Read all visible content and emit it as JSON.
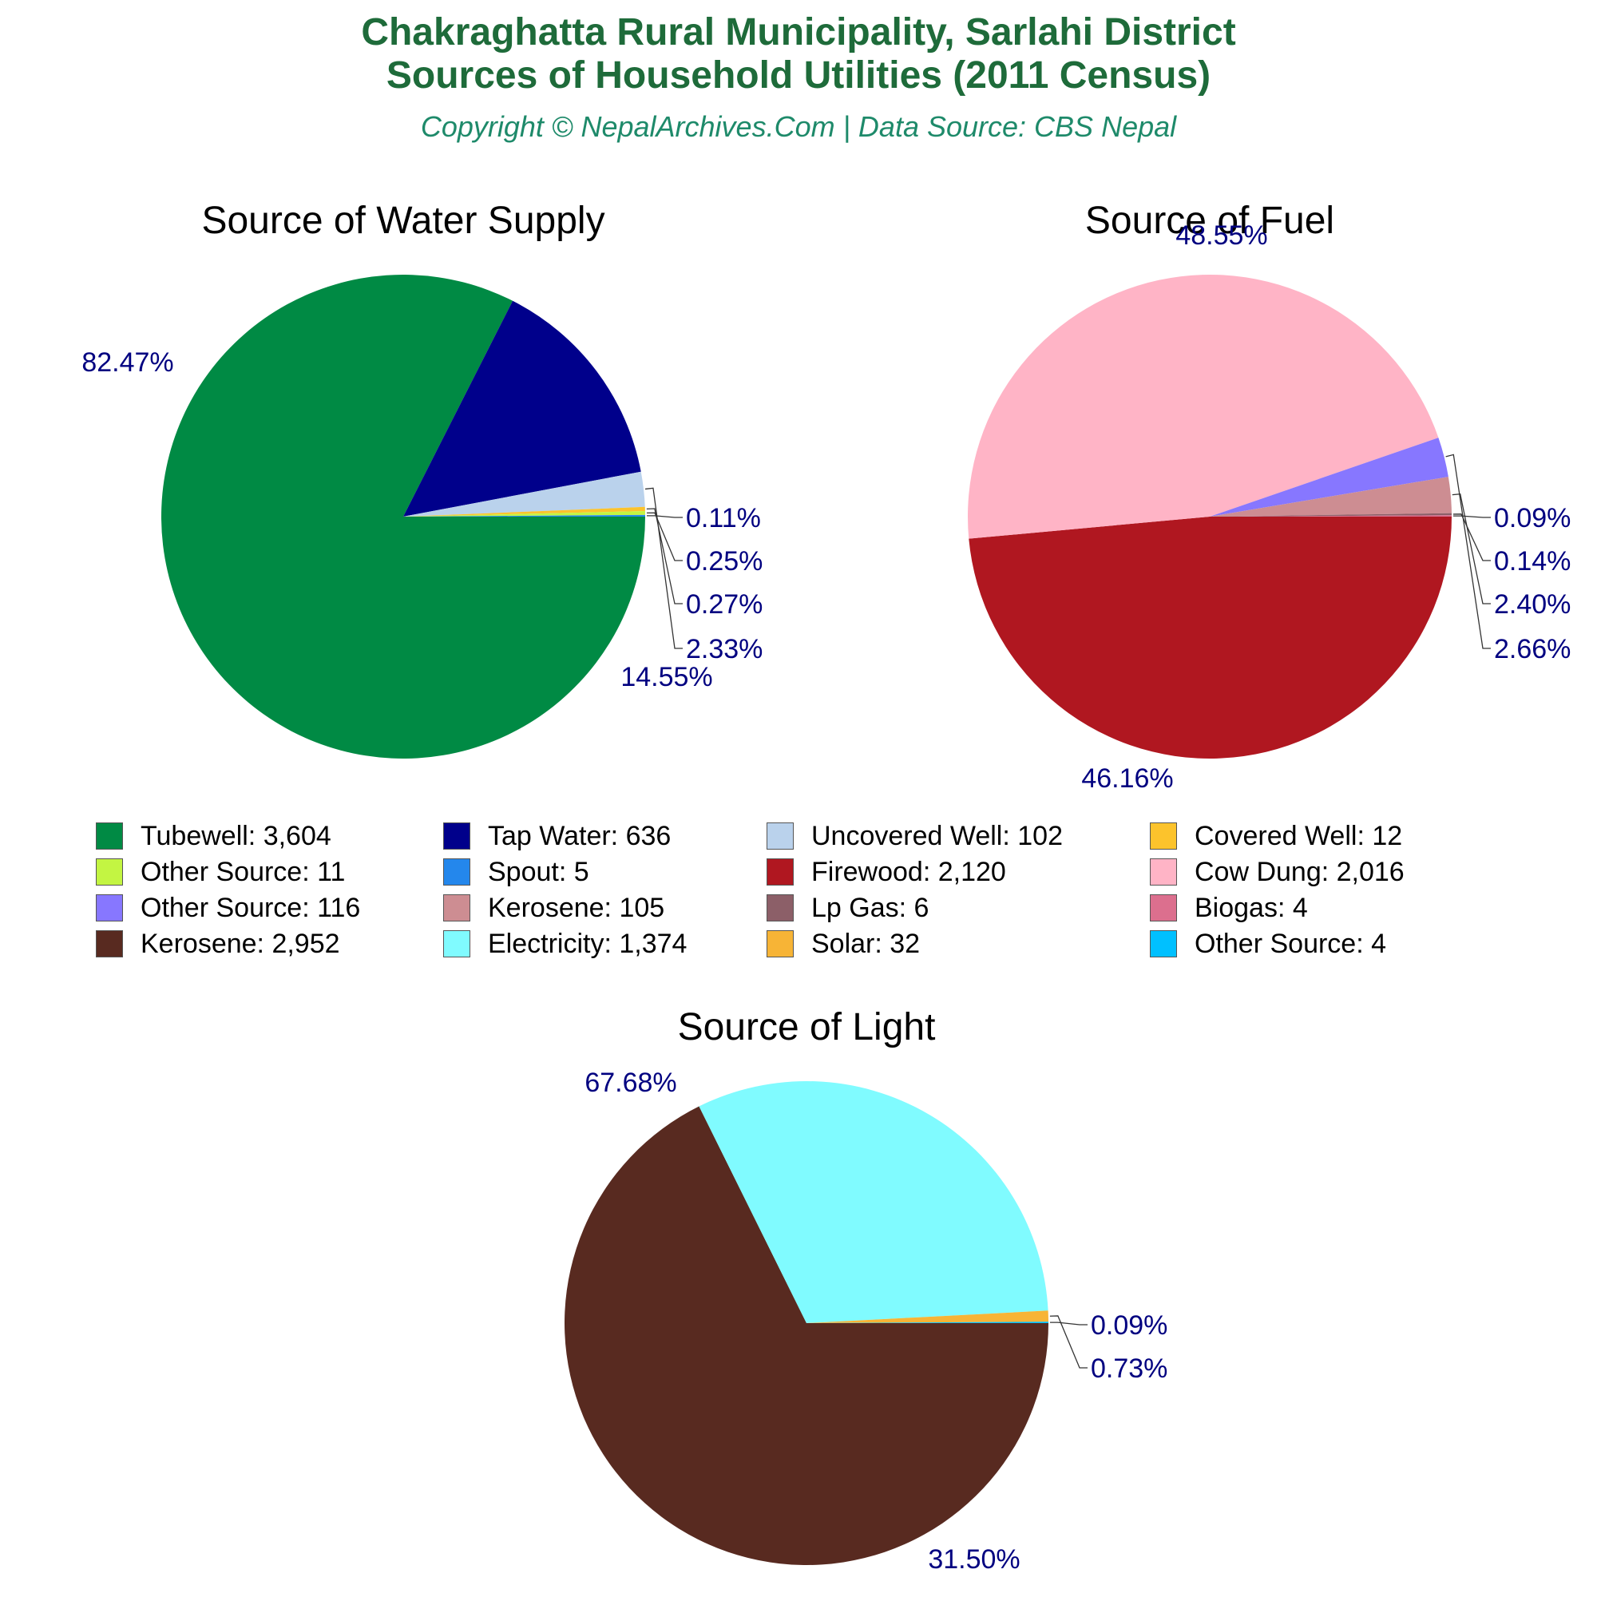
{
  "header": {
    "title_line1": "Chakraghatta Rural Municipality, Sarlahi District",
    "title_line2": "Sources of Household Utilities (2011 Census)",
    "subtitle": "Copyright © NepalArchives.Com | Data Source: CBS Nepal"
  },
  "colors": {
    "title": "#1e6b3a",
    "subtitle": "#1e8a6a",
    "pct_label": "#000080"
  },
  "chart_data": [
    {
      "type": "pie",
      "title": "Source of Water Supply",
      "slices": [
        {
          "label": "Tubewell",
          "value": 3604,
          "display": "3,604",
          "pct": "82.47%",
          "color": "#008a44"
        },
        {
          "label": "Tap Water",
          "value": 636,
          "display": "636",
          "pct": "14.55%",
          "color": "#00008b"
        },
        {
          "label": "Uncovered Well",
          "value": 102,
          "display": "102",
          "pct": "2.33%",
          "color": "#bad2ec"
        },
        {
          "label": "Covered Well",
          "value": 12,
          "display": "12",
          "pct": "0.27%",
          "color": "#fcc32c"
        },
        {
          "label": "Other Source",
          "value": 11,
          "display": "11",
          "pct": "0.25%",
          "color": "#c3f542"
        },
        {
          "label": "Spout",
          "value": 5,
          "display": "5",
          "pct": "0.11%",
          "color": "#2487ec"
        }
      ]
    },
    {
      "type": "pie",
      "title": "Source of Fuel",
      "slices": [
        {
          "label": "Firewood",
          "value": 2120,
          "display": "2,120",
          "pct": "48.55%",
          "color": "#b01720"
        },
        {
          "label": "Cow Dung",
          "value": 2016,
          "display": "2,016",
          "pct": "46.16%",
          "color": "#ffb4c6"
        },
        {
          "label": "Other Source",
          "value": 116,
          "display": "116",
          "pct": "2.66%",
          "color": "#8777ff"
        },
        {
          "label": "Kerosene",
          "value": 105,
          "display": "105",
          "pct": "2.40%",
          "color": "#cd8d92"
        },
        {
          "label": "Lp Gas",
          "value": 6,
          "display": "6",
          "pct": "0.14%",
          "color": "#8c5f68"
        },
        {
          "label": "Biogas",
          "value": 4,
          "display": "4",
          "pct": "0.09%",
          "color": "#dc6f8e"
        }
      ]
    },
    {
      "type": "pie",
      "title": "Source of Light",
      "slices": [
        {
          "label": "Kerosene",
          "value": 2952,
          "display": "2,952",
          "pct": "67.68%",
          "color": "#582a20"
        },
        {
          "label": "Electricity",
          "value": 1374,
          "display": "1,374",
          "pct": "31.50%",
          "color": "#80fbff"
        },
        {
          "label": "Solar",
          "value": 32,
          "display": "32",
          "pct": "0.73%",
          "color": "#f7b436"
        },
        {
          "label": "Other Source",
          "value": 4,
          "display": "4",
          "pct": "0.09%",
          "color": "#00c0ff"
        }
      ]
    }
  ],
  "legend": [
    {
      "text": "Tubewell: 3,604",
      "color": "#008a44"
    },
    {
      "text": "Tap Water: 636",
      "color": "#00008b"
    },
    {
      "text": "Uncovered Well: 102",
      "color": "#bad2ec"
    },
    {
      "text": "Covered Well: 12",
      "color": "#fcc32c"
    },
    {
      "text": "Other Source: 11",
      "color": "#c3f542"
    },
    {
      "text": "Spout: 5",
      "color": "#2487ec"
    },
    {
      "text": "Firewood: 2,120",
      "color": "#b01720"
    },
    {
      "text": "Cow Dung: 2,016",
      "color": "#ffb4c6"
    },
    {
      "text": "Other Source: 116",
      "color": "#8777ff"
    },
    {
      "text": "Kerosene: 105",
      "color": "#cd8d92"
    },
    {
      "text": "Lp Gas: 6",
      "color": "#8c5f68"
    },
    {
      "text": "Biogas: 4",
      "color": "#dc6f8e"
    },
    {
      "text": "Kerosene: 2,952",
      "color": "#582a20"
    },
    {
      "text": "Electricity: 1,374",
      "color": "#80fbff"
    },
    {
      "text": "Solar: 32",
      "color": "#f7b436"
    },
    {
      "text": "Other Source: 4",
      "color": "#00c0ff"
    }
  ]
}
